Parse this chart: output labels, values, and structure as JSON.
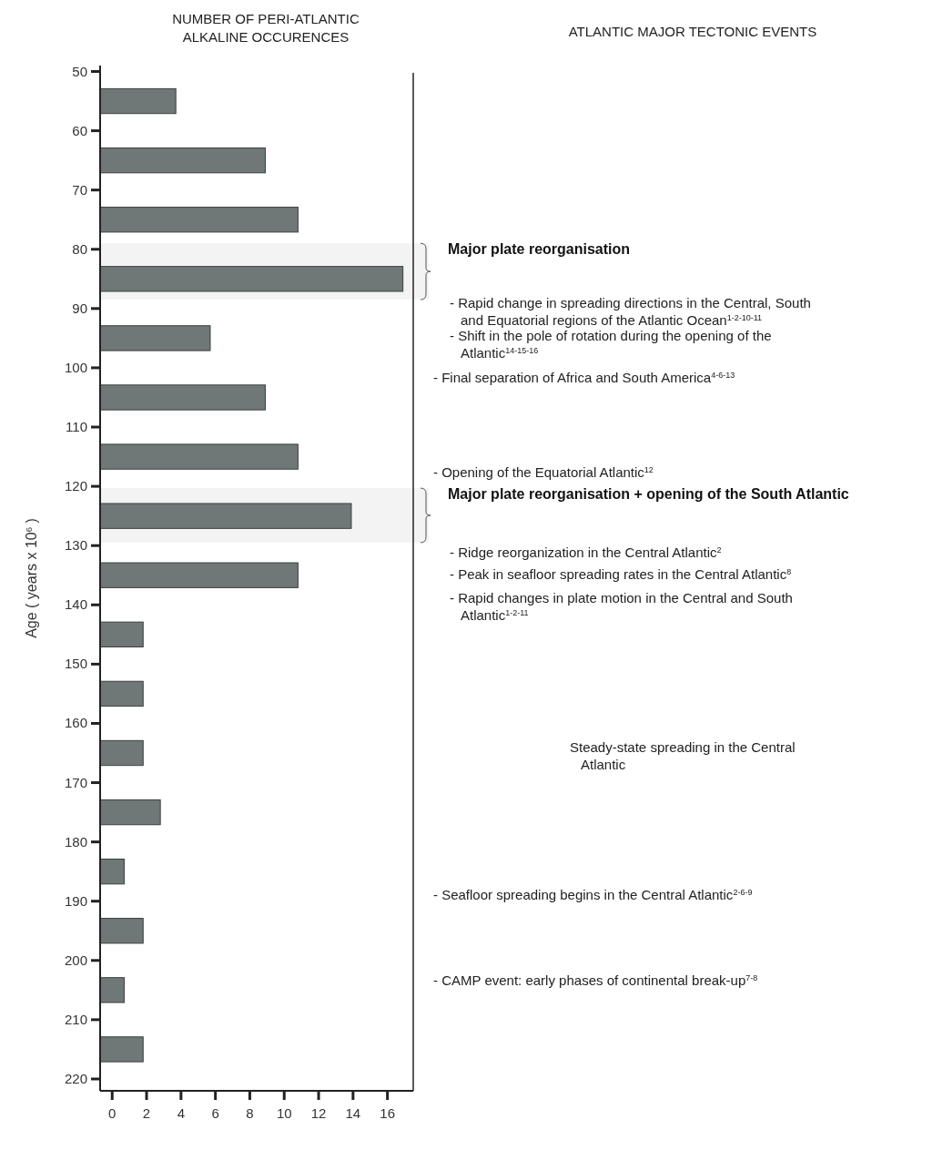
{
  "chart_data": {
    "type": "bar",
    "orientation": "horizontal",
    "title": "NUMBER OF PERI-ATLANTIC ALKALINE OCCURENCES",
    "ylabel": "Age ( years x 10$^{6}$ )",
    "x": [
      55,
      65,
      75,
      85,
      95,
      105,
      115,
      125,
      135,
      145,
      155,
      165,
      175,
      185,
      195,
      205,
      215
    ],
    "base": [
      -0.7,
      -0.7,
      -0.7,
      -0.7,
      -0.7,
      -0.7,
      -0.7,
      -0.7,
      -0.7,
      -0.7,
      -0.7,
      -0.7,
      -0.7,
      -0.7,
      -0.7,
      -0.7,
      -0.7
    ],
    "values": [
      4.4,
      9.6,
      11.5,
      17.6,
      6.4,
      9.6,
      11.5,
      14.6,
      11.5,
      2.5,
      2.5,
      2.5,
      3.5,
      1.4,
      2.5,
      1.4,
      2.5
    ],
    "color": "#6f7877",
    "xlim": [
      -0.7,
      17.5
    ],
    "xticks": [
      0,
      2,
      4,
      6,
      8,
      10,
      12,
      14,
      16
    ],
    "ylim": [
      222,
      49
    ],
    "yticks": [
      50,
      60,
      70,
      80,
      90,
      100,
      110,
      120,
      130,
      140,
      150,
      160,
      170,
      180,
      190,
      200,
      210,
      220
    ],
    "bands": [
      {
        "axis": "y",
        "from": 79,
        "to": 88.5,
        "label": "Major plate reorganisation",
        "color": "#f3f3f3"
      },
      {
        "axis": "y",
        "from": 120.3,
        "to": 129.5,
        "label": "Major plate reorganisation + opening of the South Atlantic",
        "color": "#f3f3f3"
      }
    ],
    "annotations": [
      "ATLANTIC MAJOR TECTONIC EVENTS",
      "- Rapid change in spreading directions in the Central, South and Equatorial regions of the Atlantic Ocean$^{1-2-10-11}$",
      "- Shift in the pole of rotation during the opening of the Atlantic$^{14-15-16}$",
      "- Final separation of Africa and South America$^{4-6-13}$",
      "- Opening of the Equatorial Atlantic$^{12}$",
      "- Ridge reorganization in the Central Atlantic$^{2}$",
      "- Peak in seafloor spreading rates in the Central Atlantic$^{8}$",
      "- Rapid changes in plate motion in the Central and South Atlantic$^{1-2-11}$",
      "Steady-state spreading in the Central Atlantic",
      "- Seafloor spreading begins in the Central Atlantic$^{2-6-9}$",
      "- CAMP event: early phases of continental break-up$^{7-8}$"
    ]
  }
}
